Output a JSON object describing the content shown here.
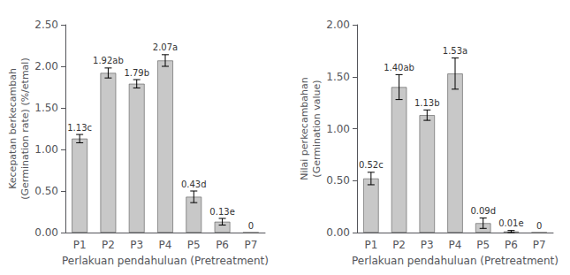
{
  "chart_data": [
    {
      "type": "bar",
      "categories": [
        "P1",
        "P2",
        "P3",
        "P4",
        "P5",
        "P6",
        "P7"
      ],
      "values": [
        1.13,
        1.92,
        1.79,
        2.07,
        0.43,
        0.13,
        0.0
      ],
      "errors": [
        0.05,
        0.06,
        0.05,
        0.07,
        0.07,
        0.04,
        0.0
      ],
      "value_labels": [
        "1.13c",
        "1.92ab",
        "1.79b",
        "2.07a",
        "0.43d",
        "0.13e",
        "0"
      ],
      "data_labels": true,
      "color": "#c8c8c8",
      "xlabel": "Perlakuan pendahuluan (Pretreatment)",
      "ylabel": "Kecepatan berkecambah\n(Germination rate) (%/etmal)",
      "ylim": [
        0.0,
        2.5
      ],
      "yticks": [
        {
          "value": 0.0,
          "label": "0.00"
        },
        {
          "value": 0.5,
          "label": "0.50"
        },
        {
          "value": 1.0,
          "label": "1.00"
        },
        {
          "value": 1.5,
          "label": "1.50"
        },
        {
          "value": 2.0,
          "label": "2.00"
        },
        {
          "value": 2.5,
          "label": "2.50"
        }
      ],
      "grid": false
    },
    {
      "type": "bar",
      "categories": [
        "P1",
        "P2",
        "P3",
        "P4",
        "P5",
        "P6",
        "P7"
      ],
      "values": [
        0.52,
        1.4,
        1.13,
        1.53,
        0.09,
        0.01,
        0.0
      ],
      "errors": [
        0.06,
        0.12,
        0.05,
        0.15,
        0.05,
        0.01,
        0.0
      ],
      "value_labels": [
        "0.52c",
        "1.40ab",
        "1.13b",
        "1.53a",
        "0.09d",
        "0.01e",
        "0"
      ],
      "data_labels": true,
      "color": "#c8c8c8",
      "xlabel": "Perlakuan pendahuluan (Pretreatment)",
      "ylabel": "Nilai perkecambahan\n(Germination value)",
      "ylim": [
        0.0,
        2.0
      ],
      "yticks": [
        {
          "value": 0.0,
          "label": "0.00"
        },
        {
          "value": 0.5,
          "label": "0.50"
        },
        {
          "value": 1.0,
          "label": "1.00"
        },
        {
          "value": 1.5,
          "label": "1.50"
        },
        {
          "value": 2.0,
          "label": "2.00"
        }
      ],
      "grid": false
    }
  ]
}
